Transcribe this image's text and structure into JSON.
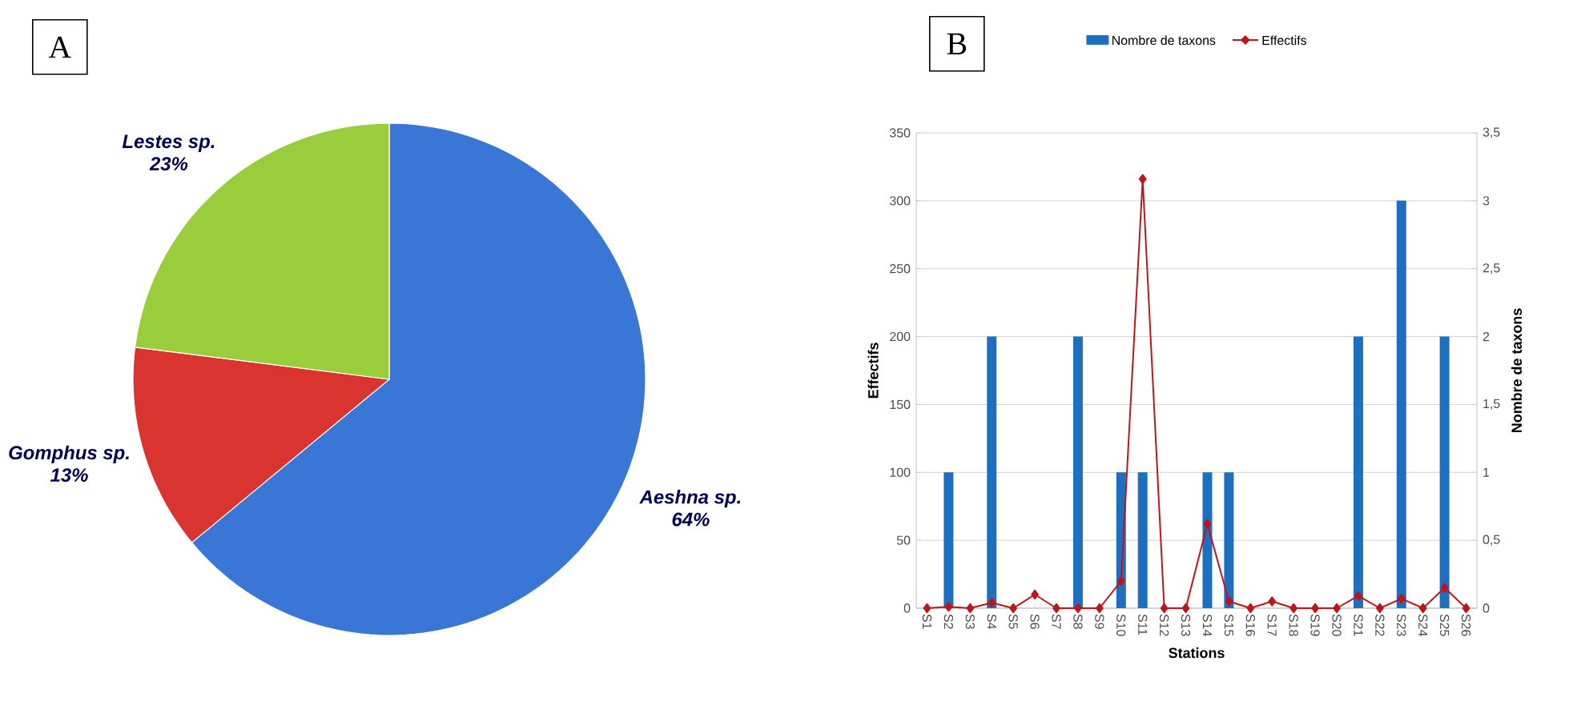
{
  "chart_data": [
    {
      "type": "pie",
      "categories": [
        "Aeshna sp.",
        "Gomphus sp.",
        "Lestes sp."
      ],
      "values": [
        64,
        13,
        23
      ],
      "value_labels": [
        "64%",
        "13%",
        "23%"
      ],
      "colors": [
        "#3a76d6",
        "#d9342f",
        "#9acd3c"
      ],
      "annotations": [
        "A"
      ]
    },
    {
      "type": "bar",
      "categories": [
        "S1",
        "S2",
        "S3",
        "S4",
        "S5",
        "S6",
        "S7",
        "S8",
        "S9",
        "S10",
        "S11",
        "S12",
        "S13",
        "S14",
        "S15",
        "S16",
        "S17",
        "S18",
        "S19",
        "S20",
        "S21",
        "S22",
        "S23",
        "S24",
        "S25",
        "S26"
      ],
      "series": [
        {
          "name": "Nombre de taxons",
          "type": "bar",
          "axis": "y2",
          "color": "#1f6fc0",
          "values": [
            0,
            1,
            0,
            2,
            0,
            0,
            0,
            2,
            0,
            1,
            1,
            0,
            0,
            1,
            1,
            0,
            0,
            0,
            0,
            0,
            2,
            0,
            3,
            0,
            2,
            0
          ]
        },
        {
          "name": "Effectifs",
          "type": "line",
          "color": "#c0141c",
          "marker": "diamond",
          "values": [
            0,
            1,
            0,
            4,
            0,
            10,
            0,
            0,
            0,
            20,
            316,
            0,
            0,
            62,
            5,
            0,
            5,
            0,
            0,
            0,
            9,
            0,
            7,
            0,
            15,
            0
          ]
        }
      ],
      "xlabel": "Stations",
      "ylabel": "Effectifs",
      "y2label": "Nombre de taxons",
      "ylim": [
        0,
        350
      ],
      "yticks": [
        0,
        50,
        100,
        150,
        200,
        250,
        300,
        350
      ],
      "y2lim": [
        0,
        3.5
      ],
      "y2ticks": [
        0,
        {
          "value": 0.5,
          "label": "0,5"
        },
        1,
        {
          "value": 1.5,
          "label": "1,5"
        },
        2,
        {
          "value": 2.5,
          "label": "2,5"
        },
        3,
        {
          "value": 3.5,
          "label": "3,5"
        }
      ],
      "grid": "y",
      "legend": "top",
      "annotations": [
        "B"
      ]
    }
  ]
}
